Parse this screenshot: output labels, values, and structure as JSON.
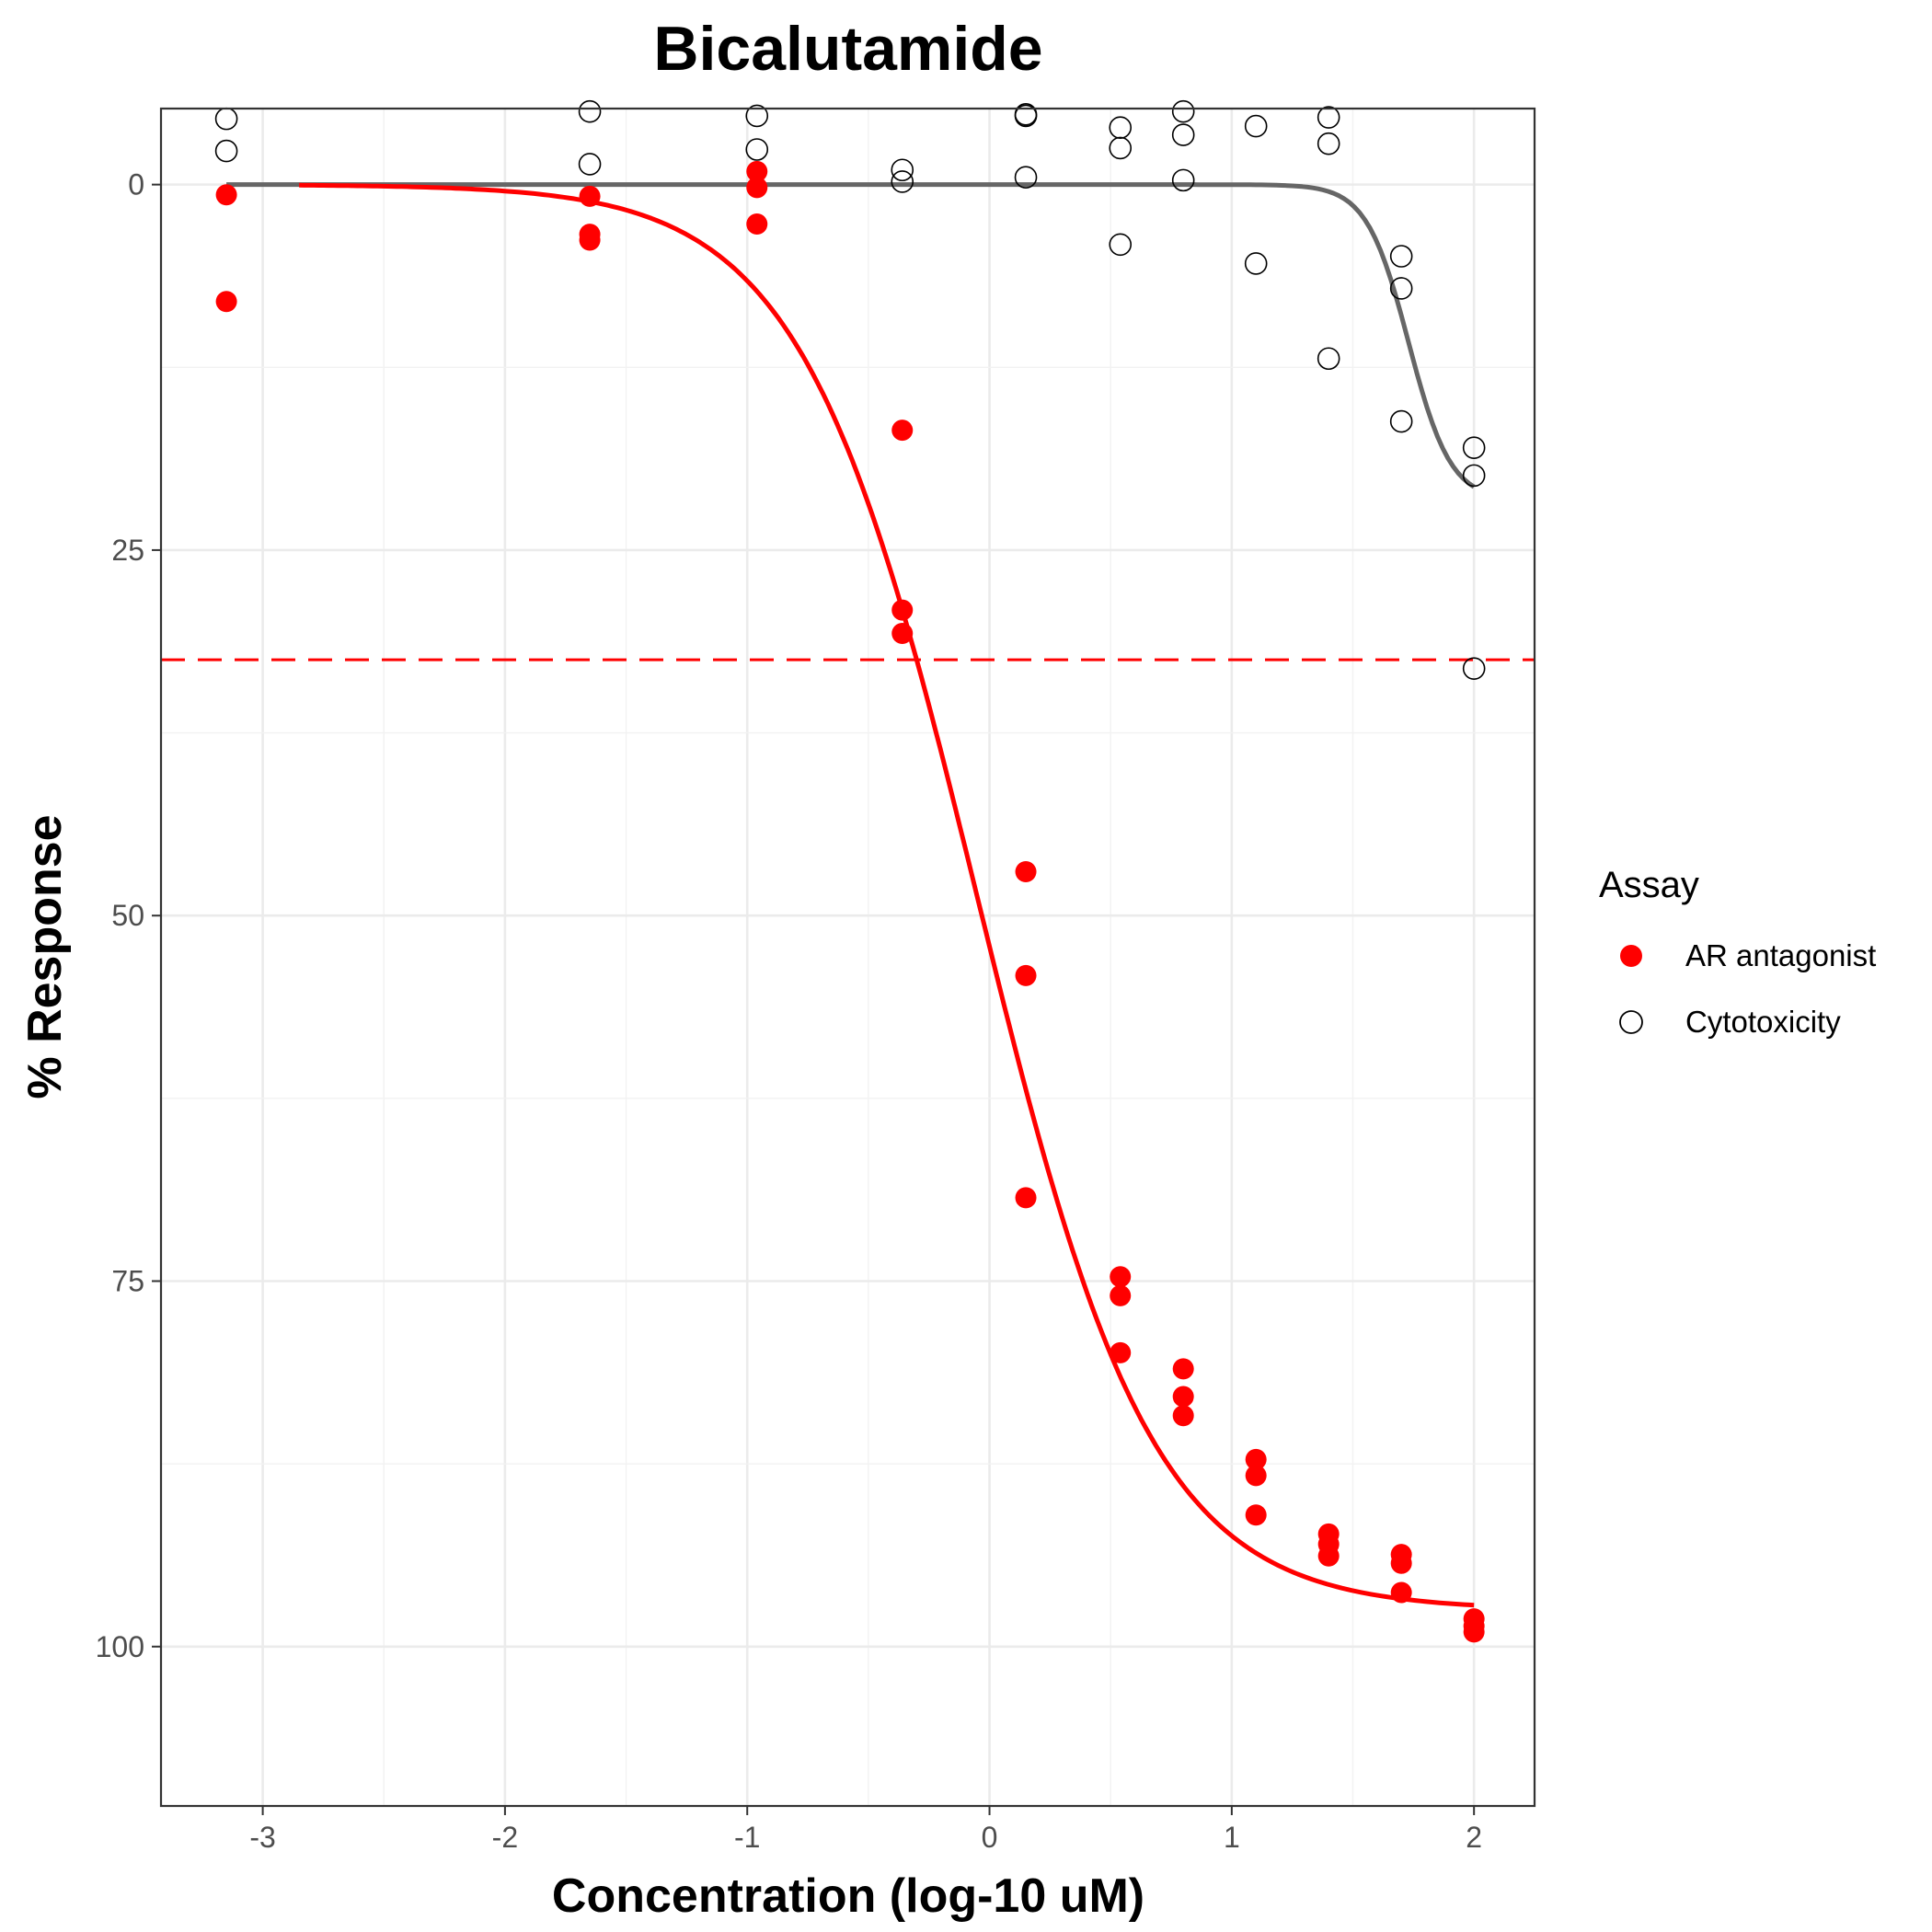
{
  "chart_data": {
    "type": "scatter",
    "title": "Bicalutamide",
    "xlabel": "Concentration (log-10 uM)",
    "ylabel": "% Response",
    "xlim": [
      -3.42,
      2.25
    ],
    "ylim": [
      -5.2,
      110.9
    ],
    "y_reversed": true,
    "xticks": [
      -3,
      -2,
      -1,
      0,
      1,
      2
    ],
    "yticks": [
      0,
      25,
      50,
      75,
      100
    ],
    "grid": true,
    "legend": {
      "title": "Assay",
      "placement": "right",
      "entries": [
        "AR antagonist",
        "Cytotoxicity"
      ]
    },
    "threshold_line": {
      "y": 32.5,
      "color": "#ff0000",
      "style": "dashed"
    },
    "series": [
      {
        "name": "AR antagonist",
        "marker": "filled-circle",
        "color": "#ff0000",
        "points": [
          [
            -3.15,
            0.7
          ],
          [
            -3.15,
            8.0
          ],
          [
            -1.65,
            0.8
          ],
          [
            -1.65,
            3.4
          ],
          [
            -1.65,
            3.8
          ],
          [
            -0.96,
            -0.9
          ],
          [
            -0.96,
            0.2
          ],
          [
            -0.96,
            2.7
          ],
          [
            -0.36,
            16.8
          ],
          [
            -0.36,
            29.1
          ],
          [
            -0.36,
            30.7
          ],
          [
            0.15,
            47.0
          ],
          [
            0.15,
            54.1
          ],
          [
            0.15,
            69.3
          ],
          [
            0.54,
            74.7
          ],
          [
            0.54,
            76.0
          ],
          [
            0.54,
            79.9
          ],
          [
            0.8,
            81.0
          ],
          [
            0.8,
            82.9
          ],
          [
            0.8,
            84.2
          ],
          [
            1.1,
            87.2
          ],
          [
            1.1,
            88.3
          ],
          [
            1.1,
            91.0
          ],
          [
            1.4,
            92.3
          ],
          [
            1.4,
            93.0
          ],
          [
            1.4,
            93.8
          ],
          [
            1.7,
            93.7
          ],
          [
            1.7,
            94.3
          ],
          [
            1.7,
            96.3
          ],
          [
            2.0,
            98.1
          ],
          [
            2.0,
            98.6
          ],
          [
            2.0,
            99.0
          ]
        ],
        "fit_curve": {
          "color": "#ff0000",
          "model": "hill",
          "bottom": 0,
          "top": 97.5,
          "log_ac50": -0.05,
          "hill_slope": 1.2,
          "x_range": [
            -2.85,
            2.0
          ]
        }
      },
      {
        "name": "Cytotoxicity",
        "marker": "open-circle",
        "color": "#000000",
        "points": [
          [
            -3.15,
            -4.5
          ],
          [
            -3.15,
            -2.3
          ],
          [
            -1.65,
            -5.0
          ],
          [
            -1.65,
            -1.4
          ],
          [
            -0.96,
            -4.7
          ],
          [
            -0.96,
            -2.4
          ],
          [
            -0.36,
            -1.0
          ],
          [
            -0.36,
            -0.2
          ],
          [
            0.15,
            -4.7
          ],
          [
            0.15,
            -4.8
          ],
          [
            0.15,
            -0.5
          ],
          [
            0.54,
            -3.9
          ],
          [
            0.54,
            -2.5
          ],
          [
            0.54,
            4.1
          ],
          [
            0.8,
            -5.0
          ],
          [
            0.8,
            -3.4
          ],
          [
            0.8,
            -0.3
          ],
          [
            1.1,
            -4.0
          ],
          [
            1.1,
            5.4
          ],
          [
            1.4,
            -4.6
          ],
          [
            1.4,
            -2.8
          ],
          [
            1.4,
            11.9
          ],
          [
            1.7,
            4.9
          ],
          [
            1.7,
            7.1
          ],
          [
            1.7,
            16.2
          ],
          [
            2.0,
            18.0
          ],
          [
            2.0,
            19.9
          ],
          [
            2.0,
            33.1
          ]
        ],
        "fit_curve": {
          "color": "#666666",
          "model": "hill",
          "bottom": 0,
          "top": 21.6,
          "log_ac50": 1.73,
          "hill_slope": 5,
          "x_range": [
            -3.15,
            2.0
          ]
        }
      }
    ]
  }
}
